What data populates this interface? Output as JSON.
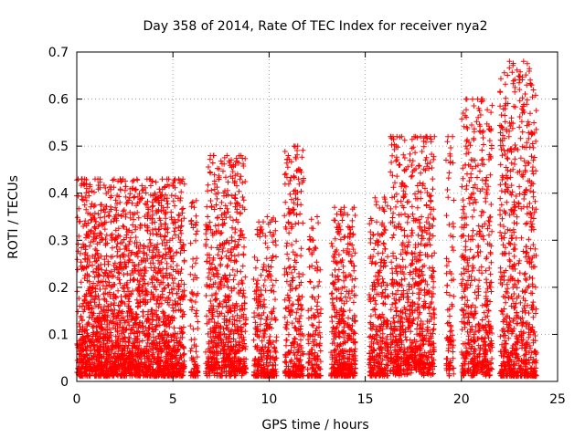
{
  "chart_data": {
    "type": "scatter",
    "title": "Day 358 of 2014, Rate Of TEC Index for receiver nya2",
    "xlabel": "GPS time / hours",
    "ylabel": "ROTI / TECUs",
    "xlim": [
      0,
      25
    ],
    "ylim": [
      0,
      0.7
    ],
    "xticks": [
      0,
      5,
      10,
      15,
      20,
      25
    ],
    "yticks": [
      0,
      0.1,
      0.2,
      0.3,
      0.4,
      0.5,
      0.6,
      0.7
    ],
    "grid": true,
    "marker": "+",
    "color": "#ff0000",
    "series": [
      {
        "name": "nya2",
        "activity_bursts": [
          {
            "x_start": 0.0,
            "x_end": 5.6,
            "y_typical": 0.11,
            "y_max": 0.43,
            "density": 0.95
          },
          {
            "x_start": 5.9,
            "x_end": 6.3,
            "y_typical": 0.1,
            "y_max": 0.4,
            "density": 0.5
          },
          {
            "x_start": 6.7,
            "x_end": 8.8,
            "y_typical": 0.12,
            "y_max": 0.48,
            "density": 0.8
          },
          {
            "x_start": 9.2,
            "x_end": 10.4,
            "y_typical": 0.09,
            "y_max": 0.35,
            "density": 0.6
          },
          {
            "x_start": 10.8,
            "x_end": 11.8,
            "y_typical": 0.1,
            "y_max": 0.5,
            "density": 0.7
          },
          {
            "x_start": 12.0,
            "x_end": 12.7,
            "y_typical": 0.08,
            "y_max": 0.35,
            "density": 0.5
          },
          {
            "x_start": 13.2,
            "x_end": 14.5,
            "y_typical": 0.1,
            "y_max": 0.37,
            "density": 0.75
          },
          {
            "x_start": 15.2,
            "x_end": 16.2,
            "y_typical": 0.1,
            "y_max": 0.4,
            "density": 0.7
          },
          {
            "x_start": 16.3,
            "x_end": 18.6,
            "y_typical": 0.13,
            "y_max": 0.52,
            "density": 0.8
          },
          {
            "x_start": 19.2,
            "x_end": 19.6,
            "y_typical": 0.12,
            "y_max": 0.52,
            "density": 0.55
          },
          {
            "x_start": 20.0,
            "x_end": 21.6,
            "y_typical": 0.12,
            "y_max": 0.6,
            "density": 0.75
          },
          {
            "x_start": 22.0,
            "x_end": 23.9,
            "y_typical": 0.09,
            "y_max": 0.68,
            "density": 0.9
          }
        ],
        "outliers": [
          {
            "x": 22.5,
            "y": 0.68
          },
          {
            "x": 21.1,
            "y": 0.6
          },
          {
            "x": 20.9,
            "y": 0.58
          },
          {
            "x": 22.6,
            "y": 0.56
          },
          {
            "x": 22.1,
            "y": 0.54
          },
          {
            "x": 21.0,
            "y": 0.53
          },
          {
            "x": 19.3,
            "y": 0.52
          },
          {
            "x": 18.6,
            "y": 0.52
          },
          {
            "x": 16.9,
            "y": 0.52
          },
          {
            "x": 11.3,
            "y": 0.5
          },
          {
            "x": 22.4,
            "y": 0.49
          },
          {
            "x": 11.0,
            "y": 0.48
          },
          {
            "x": 7.1,
            "y": 0.48
          },
          {
            "x": 20.2,
            "y": 0.46
          },
          {
            "x": 16.8,
            "y": 0.46
          },
          {
            "x": 1.1,
            "y": 0.43
          },
          {
            "x": 0.5,
            "y": 0.42
          },
          {
            "x": 13.9,
            "y": 0.37
          },
          {
            "x": 12.5,
            "y": 0.35
          },
          {
            "x": 9.9,
            "y": 0.35
          }
        ]
      }
    ]
  }
}
